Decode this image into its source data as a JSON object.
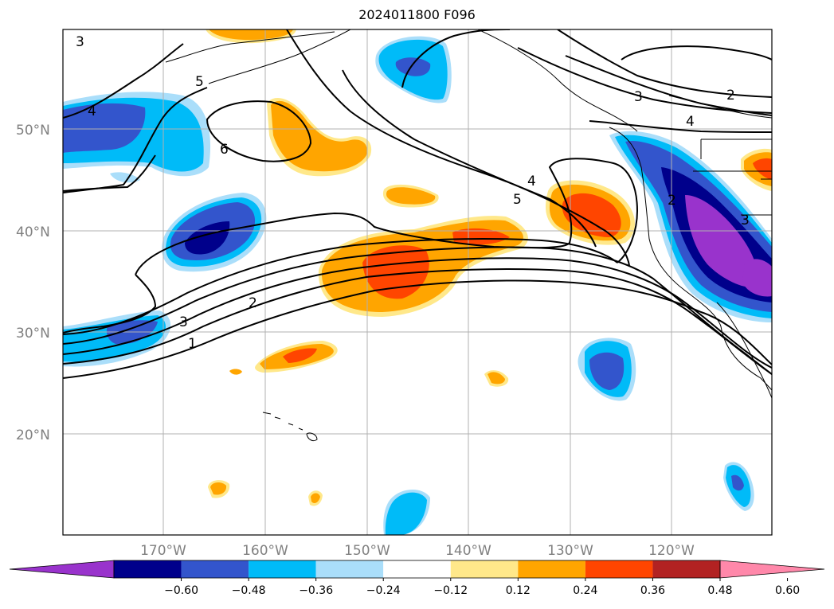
{
  "title": "2024011800 F096",
  "map": {
    "lat_labels": [
      "50°N",
      "40°N",
      "30°N",
      "20°N"
    ],
    "lon_labels": [
      "170°W",
      "160°W",
      "150°W",
      "140°W",
      "130°W",
      "120°W"
    ],
    "contour_labels": [
      "1",
      "2",
      "3",
      "3",
      "4",
      "5",
      "6",
      "4",
      "5",
      "4",
      "3",
      "2",
      "2",
      "3"
    ]
  },
  "colorbar": {
    "colors": [
      "#9933cc",
      "#00008b",
      "#3355cc",
      "#00bbf8",
      "#aadefa",
      "#ffffff",
      "#ffe88a",
      "#ffa500",
      "#ff4500",
      "#b22222",
      "#ff88aa"
    ],
    "ticks": [
      "−0.60",
      "−0.48",
      "−0.36",
      "−0.24",
      "−0.12",
      "0.12",
      "0.24",
      "0.36",
      "0.48",
      "0.60"
    ]
  }
}
